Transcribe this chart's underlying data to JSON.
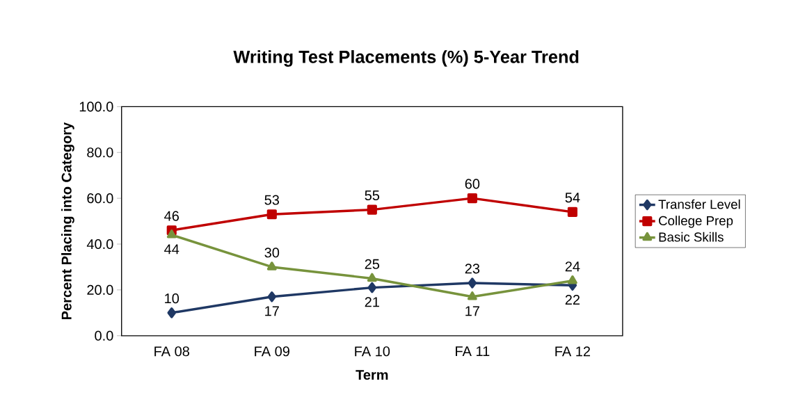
{
  "chart_data": {
    "type": "line",
    "title": "Writing Test Placements (%) 5-Year Trend",
    "xlabel": "Term",
    "ylabel": "Percent Placing into Category",
    "categories": [
      "FA 08",
      "FA 09",
      "FA 10",
      "FA 11",
      "FA 12"
    ],
    "series": [
      {
        "name": "Transfer Level",
        "color": "#1f3864",
        "marker": "diamond",
        "values": [
          10,
          17,
          21,
          23,
          22
        ]
      },
      {
        "name": "College Prep",
        "color": "#c00000",
        "marker": "square",
        "values": [
          46,
          53,
          55,
          60,
          54
        ]
      },
      {
        "name": "Basic Skills",
        "color": "#77933c",
        "marker": "triangle",
        "values": [
          44,
          30,
          25,
          17,
          24
        ]
      }
    ],
    "ylim": [
      0,
      100
    ],
    "yticks": [
      {
        "value": 0,
        "label": "0.0"
      },
      {
        "value": 20,
        "label": "20.0"
      },
      {
        "value": 40,
        "label": "40.0"
      },
      {
        "value": 60,
        "label": "60.0"
      },
      {
        "value": 80,
        "label": "80.0"
      },
      {
        "value": 100,
        "label": "100.0"
      }
    ],
    "data_labels": true,
    "legend": "right",
    "grid": false
  }
}
